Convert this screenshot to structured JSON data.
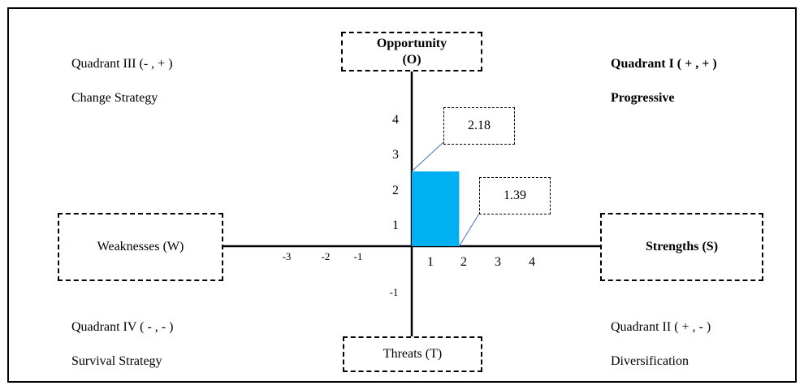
{
  "axes": {
    "top_label_line1": "Opportunity",
    "top_label_line2": "(O)",
    "bottom_label": "Threats (T)",
    "left_label": "Weaknesses (W)",
    "right_label": "Strengths (S)",
    "x_ticks": [
      "-3",
      "-2",
      "-1",
      "1",
      "2",
      "3",
      "4"
    ],
    "y_ticks": [
      "4",
      "3",
      "2",
      "1",
      "-1"
    ]
  },
  "quadrants": {
    "q1": {
      "title": "Quadrant I ( + , + )",
      "strategy": "Progressive"
    },
    "q2": {
      "title": "Quadrant II ( + , - )",
      "strategy": "Diversification"
    },
    "q3": {
      "title": "Quadrant III (- , + )",
      "strategy": "Change Strategy"
    },
    "q4": {
      "title": "Quadrant IV ( - , - )",
      "strategy": "Survival Strategy"
    }
  },
  "chart_data": {
    "type": "bar",
    "point": {
      "x": 1.39,
      "y": 2.18
    },
    "callouts": {
      "y_value": "2.18",
      "x_value": "1.39"
    },
    "bar_color": "#00b0f0"
  }
}
